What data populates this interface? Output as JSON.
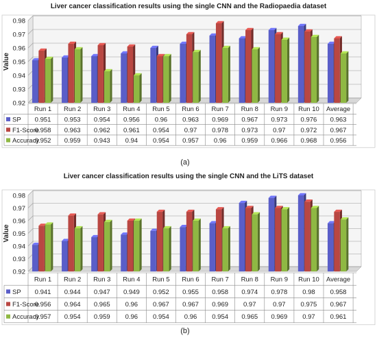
{
  "chart_data": [
    {
      "type": "bar",
      "title": "Liver cancer classification results using the single CNN and the Radiopaedia dataset",
      "ylabel": "Value",
      "ylim": [
        0.92,
        0.98
      ],
      "yticks": [
        "0.92",
        "0.93",
        "0.94",
        "0.95",
        "0.96",
        "0.97",
        "0.98"
      ],
      "categories": [
        "Run 1",
        "Run 2",
        "Run 3",
        "Run 4",
        "Run 5",
        "Run 6",
        "Run 7",
        "Run 8",
        "Run 9",
        "Run 10",
        "Average"
      ],
      "series": [
        {
          "name": "SP",
          "color": "#5a5ec8",
          "values": [
            0.951,
            0.953,
            0.954,
            0.956,
            0.96,
            0.963,
            0.969,
            0.967,
            0.973,
            0.976,
            0.963
          ]
        },
        {
          "name": "F1-Score",
          "color": "#b94742",
          "values": [
            0.958,
            0.963,
            0.962,
            0.961,
            0.954,
            0.97,
            0.978,
            0.973,
            0.97,
            0.972,
            0.967
          ]
        },
        {
          "name": "Accuracy",
          "color": "#8fb843",
          "values": [
            0.952,
            0.959,
            0.943,
            0.94,
            0.954,
            0.957,
            0.96,
            0.959,
            0.966,
            0.968,
            0.956
          ]
        }
      ],
      "table_text": [
        [
          "0.951",
          "0.953",
          "0.954",
          "0.956",
          "0.96",
          "0.963",
          "0.969",
          "0.967",
          "0.973",
          "0.976",
          "0.963"
        ],
        [
          "0.958",
          "0.963",
          "0.962",
          "0.961",
          "0.954",
          "0.97",
          "0.978",
          "0.973",
          "0.97",
          "0.972",
          "0.967"
        ],
        [
          "0.952",
          "0.959",
          "0.943",
          "0.94",
          "0.954",
          "0.957",
          "0.96",
          "0.959",
          "0.966",
          "0.968",
          "0.956"
        ]
      ],
      "caption": "(a)"
    },
    {
      "type": "bar",
      "title": "Liver cancer classification results using the single CNN and the LiTS dataset",
      "ylabel": "Value",
      "ylim": [
        0.92,
        0.98
      ],
      "yticks": [
        "0.92",
        "0.93",
        "0.94",
        "0.95",
        "0.96",
        "0.97",
        "0.98"
      ],
      "categories": [
        "Run 1",
        "Run 2",
        "Run 3",
        "Run 4",
        "Run 5",
        "Run 6",
        "Run 7",
        "Run 8",
        "Run 9",
        "Run 10",
        "Average"
      ],
      "series": [
        {
          "name": "SP",
          "color": "#5a5ec8",
          "values": [
            0.941,
            0.944,
            0.947,
            0.949,
            0.952,
            0.955,
            0.958,
            0.974,
            0.978,
            0.98,
            0.958
          ]
        },
        {
          "name": "F1-Score",
          "color": "#b94742",
          "values": [
            0.956,
            0.964,
            0.965,
            0.96,
            0.967,
            0.967,
            0.969,
            0.97,
            0.97,
            0.975,
            0.967
          ]
        },
        {
          "name": "Accuracy",
          "color": "#8fb843",
          "values": [
            0.957,
            0.954,
            0.959,
            0.96,
            0.954,
            0.96,
            0.954,
            0.965,
            0.969,
            0.97,
            0.961
          ]
        }
      ],
      "table_text": [
        [
          "0.941",
          "0.944",
          "0.947",
          "0.949",
          "0.952",
          "0.955",
          "0.958",
          "0.974",
          "0.978",
          "0.98",
          "0.958"
        ],
        [
          "0.956",
          "0.964",
          "0.965",
          "0.96",
          "0.967",
          "0.967",
          "0.969",
          "0.97",
          "0.97",
          "0.975",
          "0.967"
        ],
        [
          "0.957",
          "0.954",
          "0.959",
          "0.96",
          "0.954",
          "0.96",
          "0.954",
          "0.965",
          "0.969",
          "0.97",
          "0.961"
        ]
      ],
      "caption": "(b)"
    }
  ]
}
